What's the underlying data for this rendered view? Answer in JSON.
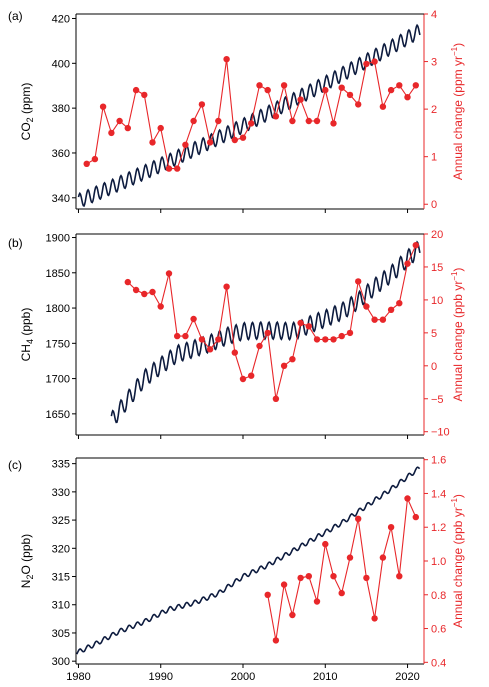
{
  "chart_data": [
    {
      "panel": "(a)",
      "type": "line",
      "left_axis": {
        "label_main": "CO",
        "label_sub": "2",
        "label_unit": " (ppm)",
        "ylim": [
          335,
          422
        ],
        "ticks": [
          340,
          360,
          380,
          400,
          420
        ],
        "color": "#000000"
      },
      "right_axis": {
        "label": "Annual change (ppm yr",
        "label_sup": "−1",
        "label_close": ")",
        "ylim": [
          -0.1,
          4.0
        ],
        "ticks": [
          0,
          1,
          2,
          3,
          4
        ],
        "color": "#e8272a"
      },
      "xlim": [
        1979.7,
        2022
      ],
      "series": [
        {
          "axis": "left",
          "color": "#0d1b3e",
          "start": 1980.0,
          "end": 2021.5,
          "y_start": 338.5,
          "y_end": 414.5,
          "curvature": 6,
          "seasonal": 3.2,
          "points": [
            [
              1980.0,
              338.5
            ],
            [
              2021.5,
              414.5
            ]
          ]
        },
        {
          "axis": "right",
          "color": "#e8272a",
          "x": [
            1981,
            1982,
            1983,
            1984,
            1985,
            1986,
            1987,
            1988,
            1989,
            1990,
            1991,
            1992,
            1993,
            1994,
            1995,
            1996,
            1997,
            1998,
            1999,
            2000,
            2001,
            2002,
            2003,
            2004,
            2005,
            2006,
            2007,
            2008,
            2009,
            2010,
            2011,
            2012,
            2013,
            2014,
            2015,
            2016,
            2017,
            2018,
            2019,
            2020,
            2021
          ],
          "y": [
            0.85,
            0.95,
            2.05,
            1.5,
            1.75,
            1.6,
            2.4,
            2.3,
            1.3,
            1.6,
            0.75,
            0.75,
            1.25,
            1.75,
            2.1,
            1.3,
            1.75,
            3.05,
            1.35,
            1.4,
            1.7,
            2.5,
            2.4,
            1.85,
            2.5,
            1.75,
            2.2,
            1.75,
            1.75,
            2.4,
            1.7,
            2.45,
            2.3,
            2.1,
            2.95,
            3.0,
            2.05,
            2.4,
            2.5,
            2.25,
            2.5
          ]
        }
      ]
    },
    {
      "panel": "(b)",
      "type": "line",
      "left_axis": {
        "label_main": "CH",
        "label_sub": "4",
        "label_unit": " (ppb)",
        "ylim": [
          1620,
          1905
        ],
        "ticks": [
          1650,
          1700,
          1750,
          1800,
          1850,
          1900
        ],
        "color": "#000000"
      },
      "right_axis": {
        "label": "Annual change (ppb yr",
        "label_sup": "−1",
        "label_close": ")",
        "ylim": [
          -10.5,
          20
        ],
        "ticks": [
          -10,
          -5,
          0,
          5,
          10,
          15,
          20
        ],
        "color": "#e8272a"
      },
      "xlim": [
        1979.7,
        2022
      ],
      "series": [
        {
          "axis": "left",
          "color": "#0d1b3e",
          "seasonal": 12,
          "points": [
            [
              1984.0,
              1640
            ],
            [
              1986.0,
              1670
            ],
            [
              1988.0,
              1700
            ],
            [
              1990.0,
              1718
            ],
            [
              1992.0,
              1735
            ],
            [
              1994.0,
              1742
            ],
            [
              1996.0,
              1750
            ],
            [
              1998.0,
              1760
            ],
            [
              2000.0,
              1767
            ],
            [
              2002.0,
              1768
            ],
            [
              2004.0,
              1768
            ],
            [
              2006.0,
              1767
            ],
            [
              2007.0,
              1770
            ],
            [
              2008.0,
              1776
            ],
            [
              2010.0,
              1785
            ],
            [
              2012.0,
              1795
            ],
            [
              2014.0,
              1810
            ],
            [
              2016.0,
              1830
            ],
            [
              2018.0,
              1848
            ],
            [
              2020.0,
              1870
            ],
            [
              2021.5,
              1885
            ]
          ]
        },
        {
          "axis": "right",
          "color": "#e8272a",
          "x": [
            1986,
            1987,
            1988,
            1989,
            1990,
            1991,
            1992,
            1993,
            1994,
            1995,
            1996,
            1997,
            1998,
            1999,
            2000,
            2001,
            2002,
            2003,
            2004,
            2005,
            2006,
            2007,
            2008,
            2009,
            2010,
            2011,
            2012,
            2013,
            2014,
            2015,
            2016,
            2017,
            2018,
            2019,
            2020,
            2021
          ],
          "y": [
            12.7,
            11.5,
            10.9,
            11.2,
            9.0,
            14.0,
            4.5,
            4.5,
            7.1,
            4.0,
            2.5,
            4.0,
            12.0,
            2.0,
            -2.0,
            -1.5,
            3.0,
            5.0,
            -5.0,
            0.0,
            1.0,
            6.5,
            6.0,
            4.0,
            4.0,
            4.0,
            4.5,
            5.0,
            12.8,
            9.0,
            7.0,
            7.0,
            8.5,
            9.5,
            15.5,
            18.3
          ]
        }
      ]
    },
    {
      "panel": "(c)",
      "type": "line",
      "left_axis": {
        "label_main": "N",
        "label_sub": "2",
        "label_unit": "O (ppb)",
        "ylim": [
          299.5,
          336
        ],
        "ticks": [
          300,
          305,
          310,
          315,
          320,
          325,
          330,
          335
        ],
        "color": "#000000"
      },
      "right_axis": {
        "label": "Annual change (ppb yr",
        "label_sup": "−1",
        "label_close": ")",
        "ylim": [
          0.39,
          1.61
        ],
        "ticks": [
          0.4,
          0.6,
          0.8,
          1.0,
          1.2,
          1.4,
          1.6
        ],
        "color": "#e8272a"
      },
      "xlim": [
        1979.7,
        2022
      ],
      "series": [
        {
          "axis": "left",
          "color": "#0d1b3e",
          "seasonal": 0.4,
          "points": [
            [
              1979.8,
              301.5
            ],
            [
              1982.0,
              303.0
            ],
            [
              1985.0,
              305.3
            ],
            [
              1988.0,
              307.0
            ],
            [
              1991.0,
              309.2
            ],
            [
              1994.0,
              310.3
            ],
            [
              1997.0,
              312.0
            ],
            [
              2000.0,
              315.0
            ],
            [
              2003.0,
              317.0
            ],
            [
              2006.0,
              319.5
            ],
            [
              2009.0,
              322.0
            ],
            [
              2012.0,
              324.5
            ],
            [
              2015.0,
              327.5
            ],
            [
              2018.0,
              330.5
            ],
            [
              2021.5,
              334.3
            ]
          ]
        },
        {
          "axis": "right",
          "color": "#e8272a",
          "x": [
            2003,
            2004,
            2005,
            2006,
            2007,
            2008,
            2009,
            2010,
            2011,
            2012,
            2013,
            2014,
            2015,
            2016,
            2017,
            2018,
            2019,
            2020,
            2021
          ],
          "y": [
            0.8,
            0.53,
            0.86,
            0.68,
            0.9,
            0.91,
            0.76,
            1.1,
            0.91,
            0.81,
            1.02,
            1.25,
            0.9,
            0.66,
            1.02,
            1.2,
            0.91,
            1.37,
            1.26
          ]
        }
      ]
    }
  ],
  "x_axis": {
    "ticks": [
      1980,
      1990,
      2000,
      2010,
      2020
    ]
  }
}
